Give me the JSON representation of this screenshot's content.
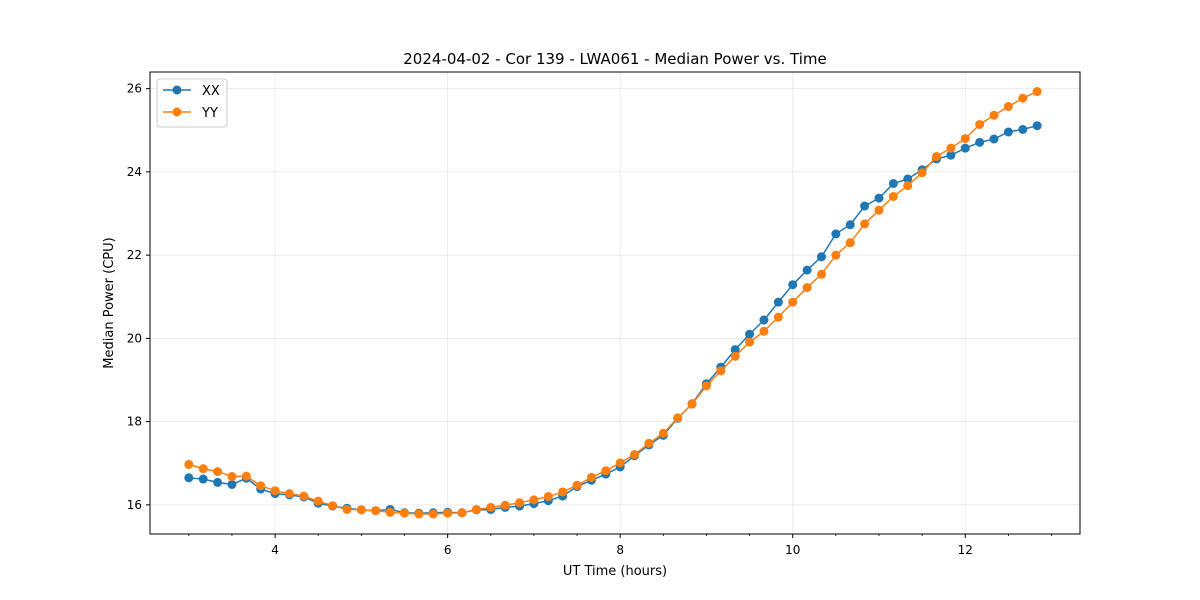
{
  "chart_data": {
    "type": "line",
    "title": "2024-04-02 - Cor 139 - LWA061 - Median Power vs. Time",
    "xlabel": "UT Time (hours)",
    "ylabel": "Median Power (CPU)",
    "xlim": [
      2.55,
      13.33
    ],
    "ylim": [
      15.3,
      26.4
    ],
    "xticks": [
      4,
      6,
      8,
      10,
      12
    ],
    "yticks": [
      16,
      18,
      20,
      22,
      24,
      26
    ],
    "grid": true,
    "legend_position": "top-left",
    "x": [
      3.0,
      3.1667,
      3.3333,
      3.5,
      3.6667,
      3.8333,
      4.0,
      4.1667,
      4.3333,
      4.5,
      4.6667,
      4.8333,
      5.0,
      5.1667,
      5.3333,
      5.5,
      5.6667,
      5.8333,
      6.0,
      6.1667,
      6.3333,
      6.5,
      6.6667,
      6.8333,
      7.0,
      7.1667,
      7.3333,
      7.5,
      7.6667,
      7.8333,
      8.0,
      8.1667,
      8.3333,
      8.5,
      8.6667,
      8.8333,
      9.0,
      9.1667,
      9.3333,
      9.5,
      9.6667,
      9.8333,
      10.0,
      10.1667,
      10.3333,
      10.5,
      10.6667,
      10.8333,
      11.0,
      11.1667,
      11.3333,
      11.5,
      11.6667,
      11.8333,
      12.0,
      12.1667,
      12.3333,
      12.5,
      12.6667,
      12.8333
    ],
    "series": [
      {
        "name": "XX",
        "color": "#1f77b4",
        "values": [
          16.65,
          16.62,
          16.54,
          16.49,
          16.64,
          16.38,
          16.27,
          16.24,
          16.19,
          16.04,
          15.97,
          15.92,
          15.88,
          15.86,
          15.89,
          15.81,
          15.8,
          15.81,
          15.82,
          15.81,
          15.88,
          15.89,
          15.94,
          15.97,
          16.03,
          16.1,
          16.21,
          16.44,
          16.59,
          16.74,
          16.91,
          17.18,
          17.44,
          17.67,
          18.08,
          18.43,
          18.91,
          19.31,
          19.73,
          20.1,
          20.44,
          20.87,
          21.29,
          21.64,
          21.96,
          22.51,
          22.73,
          23.18,
          23.37,
          23.72,
          23.83,
          24.05,
          24.31,
          24.4,
          24.57,
          24.71,
          24.79,
          24.96,
          25.02,
          25.11
        ]
      },
      {
        "name": "YY",
        "color": "#ff7f0e",
        "values": [
          16.97,
          16.87,
          16.8,
          16.68,
          16.69,
          16.46,
          16.34,
          16.27,
          16.21,
          16.09,
          15.98,
          15.89,
          15.88,
          15.86,
          15.82,
          15.8,
          15.78,
          15.78,
          15.8,
          15.81,
          15.89,
          15.94,
          15.99,
          16.05,
          16.12,
          16.2,
          16.31,
          16.47,
          16.66,
          16.82,
          17.01,
          17.21,
          17.48,
          17.72,
          18.09,
          18.42,
          18.86,
          19.22,
          19.57,
          19.91,
          20.17,
          20.51,
          20.87,
          21.22,
          21.54,
          22.0,
          22.3,
          22.75,
          23.08,
          23.41,
          23.67,
          23.98,
          24.37,
          24.57,
          24.8,
          25.14,
          25.36,
          25.57,
          25.77,
          25.93
        ]
      }
    ]
  }
}
